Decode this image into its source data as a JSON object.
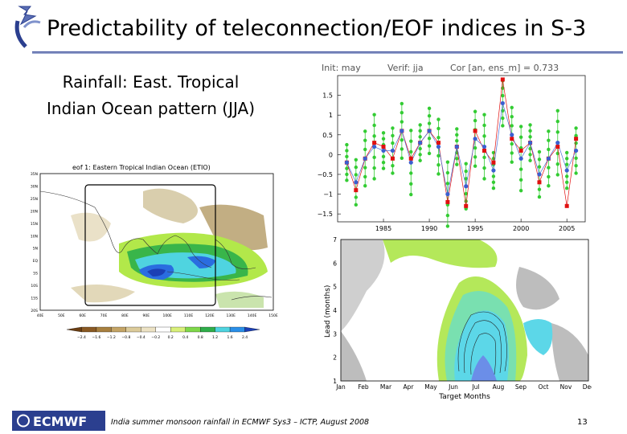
{
  "slide": {
    "title": "Predictability of teleconnection/EOF indices in S-3",
    "subtitle_line1": "Rainfall: East. Tropical",
    "subtitle_line2": "Indian Ocean pattern (JJA)",
    "footer_text": "India summer monsoon rainfall in ECMWF Sys3 – ICTP, August 2008",
    "page_number": "13",
    "logo_text": "ECMWF",
    "colors": {
      "rule": "#3a4d9a",
      "logo_bg": "#2b3f8f",
      "accent_green": "#33cc33",
      "obs_red": "#e01010"
    }
  },
  "timeseries": {
    "header_init": "Init: may",
    "header_verif": "Verif: jja",
    "header_cor": "Cor [an, ens_m] = 0.733",
    "y_ticks": [
      "1.5",
      "1",
      "0.5",
      "0",
      "−0.5",
      "−1",
      "−1.5"
    ],
    "x_ticks": [
      "1985",
      "1990",
      "1995",
      "2000",
      "2005"
    ],
    "chart_data": {
      "type": "line",
      "title": "Init: may  Verif: jja  Cor [an, ens_m] = 0.733",
      "x": [
        1981,
        1982,
        1983,
        1984,
        1985,
        1986,
        1987,
        1988,
        1989,
        1990,
        1991,
        1992,
        1993,
        1994,
        1995,
        1996,
        1997,
        1998,
        1999,
        2000,
        2001,
        2002,
        2003,
        2004,
        2005,
        2006
      ],
      "series": [
        {
          "name": "ensemble mean",
          "values": [
            -0.2,
            -0.7,
            -0.1,
            0.2,
            0.1,
            0.1,
            0.6,
            -0.2,
            0.3,
            0.6,
            0.2,
            -1.0,
            0.2,
            -0.8,
            0.4,
            0.2,
            -0.4,
            1.3,
            0.5,
            -0.1,
            0.3,
            -0.5,
            -0.1,
            0.3,
            -0.4,
            0.1
          ]
        },
        {
          "name": "analysis",
          "values": [
            -0.2,
            -0.9,
            -0.1,
            0.3,
            0.2,
            -0.1,
            0.6,
            -0.1,
            0.3,
            0.6,
            0.3,
            -1.2,
            0.2,
            -1.3,
            0.6,
            0.1,
            -0.2,
            1.9,
            0.4,
            0.1,
            0.3,
            -0.7,
            -0.1,
            0.2,
            -1.3,
            0.4
          ]
        }
      ],
      "ylim": [
        -1.7,
        2.0
      ],
      "xlim": [
        1980,
        2007
      ]
    }
  },
  "eof_map": {
    "title": "eof 1: Eastern Tropical Indian Ocean (ETIO)",
    "lat_labels": [
      "35N",
      "30N",
      "25N",
      "20N",
      "15N",
      "10N",
      "5N",
      "EQ",
      "5S",
      "10S",
      "15S",
      "20S"
    ],
    "lon_labels": [
      "40E",
      "50E",
      "60E",
      "70E",
      "80E",
      "90E",
      "100E",
      "110E",
      "120E",
      "130E",
      "140E",
      "150E"
    ],
    "colorbar_labels": [
      "−2.4",
      "−1.6",
      "−1.2",
      "−0.8",
      "−0.4",
      "−0.2",
      "0.2",
      "0.4",
      "0.8",
      "1.2",
      "1.6",
      "2.4"
    ]
  },
  "lead_plot": {
    "y_axis_label": "Lead (months)",
    "x_axis_label": "Target Months",
    "y_ticks": [
      "1",
      "2",
      "3",
      "4",
      "5",
      "6",
      "7"
    ],
    "months": [
      "Jan",
      "Feb",
      "Mar",
      "Apr",
      "May",
      "Jun",
      "Jul",
      "Aug",
      "Sep",
      "Oct",
      "Nov",
      "Dec"
    ]
  }
}
